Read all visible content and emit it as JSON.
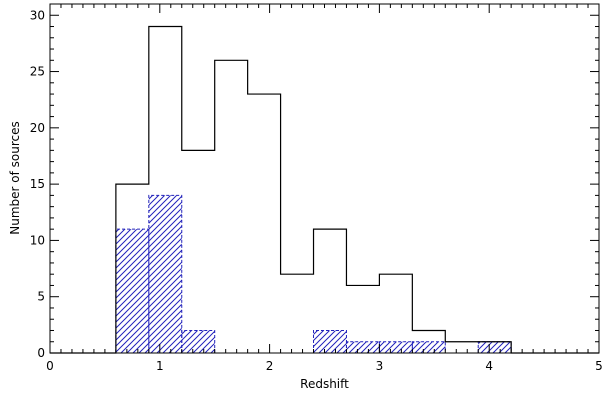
{
  "chart_data": {
    "type": "histogram",
    "xlabel": "Redshift",
    "ylabel": "Number of sources",
    "xlim": [
      0,
      5
    ],
    "ylim": [
      0,
      31
    ],
    "x_major_ticks": [
      0,
      1,
      2,
      3,
      4,
      5
    ],
    "y_major_ticks": [
      0,
      5,
      10,
      15,
      20,
      25,
      30
    ],
    "x_minor_step": 0.1,
    "y_minor_step": 1,
    "grid": false,
    "series": [
      {
        "style": "solid-step",
        "color": "#000000",
        "bins": [
          {
            "x0": 0.6,
            "x1": 0.9,
            "count": 15
          },
          {
            "x0": 0.9,
            "x1": 1.2,
            "count": 29
          },
          {
            "x0": 1.2,
            "x1": 1.5,
            "count": 18
          },
          {
            "x0": 1.5,
            "x1": 1.8,
            "count": 26
          },
          {
            "x0": 1.8,
            "x1": 2.1,
            "count": 23
          },
          {
            "x0": 2.1,
            "x1": 2.4,
            "count": 7
          },
          {
            "x0": 2.4,
            "x1": 2.7,
            "count": 11
          },
          {
            "x0": 2.7,
            "x1": 3.0,
            "count": 6
          },
          {
            "x0": 3.0,
            "x1": 3.3,
            "count": 7
          },
          {
            "x0": 3.3,
            "x1": 3.6,
            "count": 2
          },
          {
            "x0": 3.6,
            "x1": 3.9,
            "count": 1
          },
          {
            "x0": 3.9,
            "x1": 4.2,
            "count": 1
          }
        ]
      },
      {
        "style": "hatched-dashed",
        "color": "#2222bb",
        "bins": [
          {
            "x0": 0.6,
            "x1": 0.9,
            "count": 11
          },
          {
            "x0": 0.9,
            "x1": 1.2,
            "count": 14
          },
          {
            "x0": 1.2,
            "x1": 1.5,
            "count": 2
          },
          {
            "x0": 2.4,
            "x1": 2.7,
            "count": 2
          },
          {
            "x0": 2.7,
            "x1": 3.0,
            "count": 1
          },
          {
            "x0": 3.0,
            "x1": 3.3,
            "count": 1
          },
          {
            "x0": 3.3,
            "x1": 3.6,
            "count": 1
          },
          {
            "x0": 3.9,
            "x1": 4.2,
            "count": 1
          }
        ]
      }
    ]
  }
}
